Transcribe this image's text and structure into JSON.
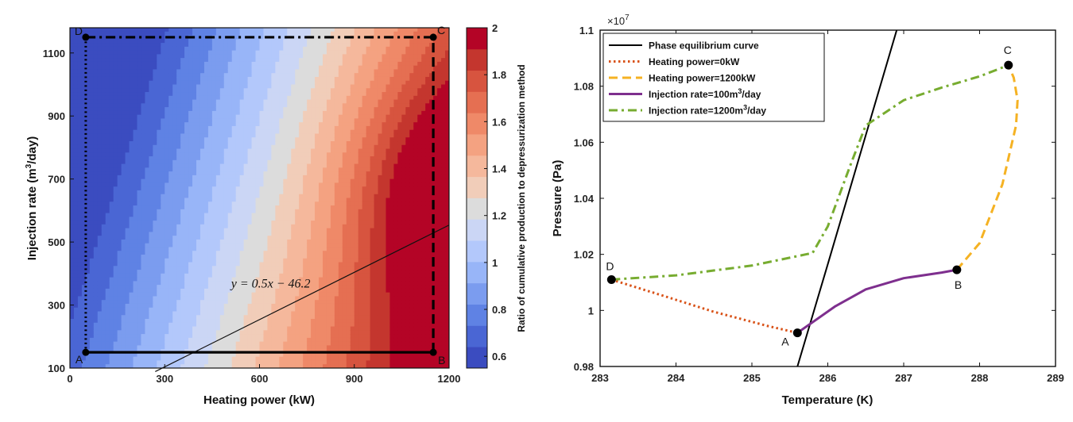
{
  "chart_data": [
    {
      "type": "heatmap",
      "xlabel": "Heating power (kW)",
      "ylabel": "Injection rate (m3/day)",
      "xlim": [
        0,
        1200
      ],
      "ylim": [
        100,
        1180
      ],
      "xticks": [
        "0",
        "300",
        "600",
        "900",
        "1200"
      ],
      "yticks": [
        "100",
        "300",
        "500",
        "700",
        "900",
        "1100"
      ],
      "colorbar": {
        "label": "Ratio of cumulative production to depressurization method",
        "range": [
          0.55,
          2.0
        ],
        "ticks": [
          "0.6",
          "0.8",
          "1",
          "1.2",
          "1.4",
          "1.6",
          "1.8",
          "2"
        ],
        "colors": [
          "#3b4cc0",
          "#4a66d4",
          "#5f82e4",
          "#7b9cef",
          "#98b5f8",
          "#b3c8fb",
          "#cbd6f5",
          "#dcdcdc",
          "#f1cdb9",
          "#f5b89c",
          "#f4a281",
          "#ef8968",
          "#e56f52",
          "#d7543f",
          "#c4362e",
          "#b40426"
        ]
      },
      "points": [
        {
          "label": "A",
          "x": 50,
          "y": 150
        },
        {
          "label": "B",
          "x": 1150,
          "y": 150
        },
        {
          "label": "C",
          "x": 1150,
          "y": 1150
        },
        {
          "label": "D",
          "x": 50,
          "y": 1150
        }
      ],
      "paths": [
        {
          "from": "A",
          "to": "B",
          "style": "solid"
        },
        {
          "from": "B",
          "to": "C",
          "style": "dashed"
        },
        {
          "from": "C",
          "to": "D",
          "style": "dash-dot"
        },
        {
          "from": "D",
          "to": "A",
          "style": "dotted"
        }
      ],
      "line": {
        "equation": "y = 0.5x − 46.2",
        "slope": 0.5,
        "intercept": -46.2
      }
    },
    {
      "type": "line",
      "xlabel": "Temperature (K)",
      "ylabel": "Pressure (Pa)",
      "y_multiplier": "×10",
      "y_multiplier_exp": "7",
      "xlim": [
        283,
        289
      ],
      "ylim": [
        0.98,
        1.1
      ],
      "xticks": [
        "283",
        "284",
        "285",
        "286",
        "287",
        "288",
        "289"
      ],
      "yticks": [
        "0.98",
        "1",
        "1.02",
        "1.04",
        "1.06",
        "1.08",
        "1.1"
      ],
      "legend_position": "top-left",
      "series": [
        {
          "name": "Phase equilibrium curve",
          "color": "#000000",
          "style": "solid",
          "x": [
            285.6,
            286.0,
            286.5,
            287.0,
            287.5
          ],
          "y": [
            0.98,
            1.0165,
            1.0625,
            1.1085,
            1.1545
          ]
        },
        {
          "name": "Heating power=0kW",
          "color": "#d95319",
          "style": "dotted",
          "x": [
            283.15,
            283.8,
            284.5,
            285.2,
            285.6
          ],
          "y": [
            1.011,
            1.0055,
            0.9995,
            0.9945,
            0.992
          ]
        },
        {
          "name": "Heating power=1200kW",
          "color": "#f5b223",
          "style": "dashed",
          "x": [
            287.7,
            288.0,
            288.3,
            288.48,
            288.5,
            288.45,
            288.38
          ],
          "y": [
            1.0145,
            1.024,
            1.045,
            1.066,
            1.075,
            1.083,
            1.0875
          ]
        },
        {
          "name_pre": "Injection rate=100m",
          "name_sup": "3",
          "name_post": "/day",
          "color": "#7e2f8e",
          "style": "solid",
          "x": [
            285.6,
            286.1,
            286.5,
            287.0,
            287.5,
            287.7
          ],
          "y": [
            0.992,
            1.0015,
            1.0075,
            1.0115,
            1.0135,
            1.0145
          ]
        },
        {
          "name_pre": "Injection rate=1200m",
          "name_sup": "3",
          "name_post": "/day",
          "color": "#77ac30",
          "style": "dash-dot",
          "x": [
            283.15,
            284.0,
            285.0,
            285.8,
            286.0,
            286.3,
            286.5,
            287.0,
            287.5,
            288.0,
            288.38
          ],
          "y": [
            1.011,
            1.0125,
            1.016,
            1.0205,
            1.03,
            1.052,
            1.066,
            1.075,
            1.0795,
            1.0835,
            1.0875
          ]
        }
      ],
      "points": [
        {
          "label": "A",
          "x": 285.6,
          "y": 0.992
        },
        {
          "label": "B",
          "x": 287.7,
          "y": 1.0145
        },
        {
          "label": "C",
          "x": 288.38,
          "y": 1.0875
        },
        {
          "label": "D",
          "x": 283.15,
          "y": 1.011
        }
      ]
    }
  ]
}
